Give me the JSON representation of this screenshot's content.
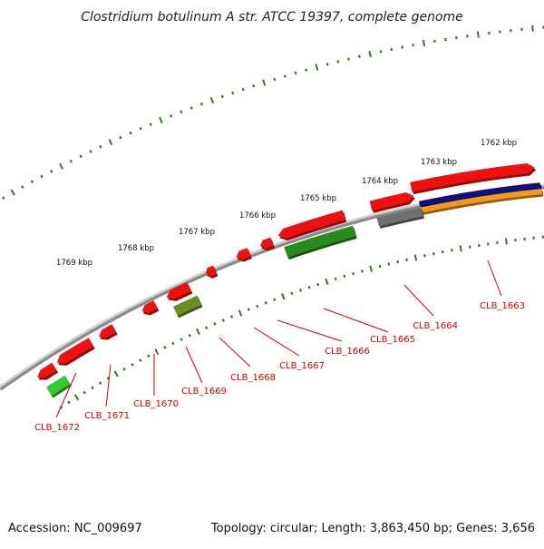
{
  "title": "Clostridium botulinum A str. ATCC 19397, complete genome",
  "footer": {
    "accession": "Accession: NC_009697",
    "summary": "Topology: circular; Length: 3,863,450 bp; Genes: 3,656"
  },
  "scale_labels": [
    "1762 kbp",
    "1763 kbp",
    "1764 kbp",
    "1765 kbp",
    "1766 kbp",
    "1767 kbp",
    "1768 kbp",
    "1769 kbp"
  ],
  "gene_labels": [
    "CLB_1663",
    "CLB_1664",
    "CLB_1665",
    "CLB_1666",
    "CLB_1667",
    "CLB_1668",
    "CLB_1669",
    "CLB_1670",
    "CLB_1671",
    "CLB_1672"
  ],
  "colors": {
    "backbone": "#8a8a8a",
    "tick": "#2e7d1f",
    "gene_red": "#ee1111",
    "gene_grey": "#707070",
    "gene_dark_green": "#2a8a1e",
    "gene_olive": "#6b8e23",
    "gene_light_green": "#33cc33",
    "gene_navy": "#101080",
    "gene_orange": "#f39a1e",
    "label": "#d40000"
  }
}
